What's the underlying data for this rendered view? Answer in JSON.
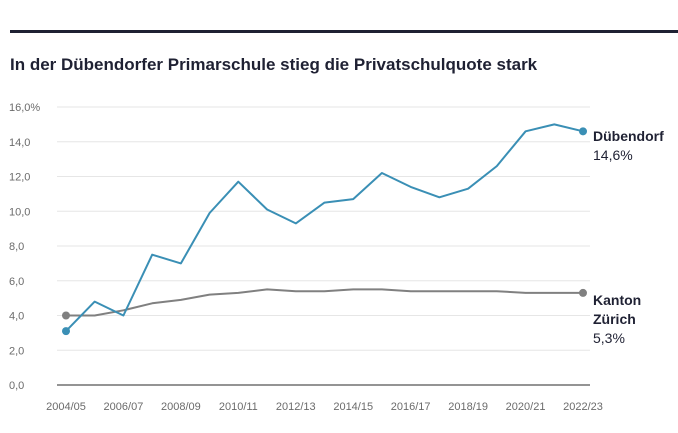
{
  "chart_data": {
    "type": "line",
    "title": "In der Dübendorfer Primarschule stieg die Privatschulquote stark",
    "x": [
      "2004/05",
      "2005/06",
      "2006/07",
      "2007/08",
      "2008/09",
      "2009/10",
      "2010/11",
      "2011/12",
      "2012/13",
      "2013/14",
      "2014/15",
      "2015/16",
      "2016/17",
      "2017/18",
      "2018/19",
      "2019/20",
      "2020/21",
      "2021/22",
      "2022/23"
    ],
    "x_tick_labels": [
      "2004/05",
      "2006/07",
      "2008/09",
      "2010/11",
      "2012/13",
      "2014/15",
      "2016/17",
      "2018/19",
      "2020/21",
      "2022/23"
    ],
    "y_tick_labels": [
      "0,0",
      "2,0",
      "4,0",
      "6,0",
      "8,0",
      "10,0",
      "12,0",
      "14,0",
      "16,0%"
    ],
    "y_ticks": [
      0,
      2,
      4,
      6,
      8,
      10,
      12,
      14,
      16
    ],
    "ylim": [
      0,
      16
    ],
    "grid": true,
    "series": [
      {
        "name": "Dübendorf",
        "color": "#3a8fb5",
        "end_label_lines": [
          "Dübendorf"
        ],
        "end_value": "14,6%",
        "values": [
          3.1,
          4.8,
          4.0,
          7.5,
          7.0,
          9.9,
          11.7,
          10.1,
          9.3,
          10.5,
          10.7,
          12.2,
          11.4,
          10.8,
          11.3,
          12.6,
          14.6,
          15.0,
          14.6
        ]
      },
      {
        "name": "Kanton Zürich",
        "color": "#808080",
        "end_label_lines": [
          "Kanton",
          "Zürich"
        ],
        "end_value": "5,3%",
        "values": [
          4.0,
          4.0,
          4.3,
          4.7,
          4.9,
          5.2,
          5.3,
          5.5,
          5.4,
          5.4,
          5.5,
          5.5,
          5.4,
          5.4,
          5.4,
          5.4,
          5.3,
          5.3,
          5.3
        ]
      }
    ]
  }
}
